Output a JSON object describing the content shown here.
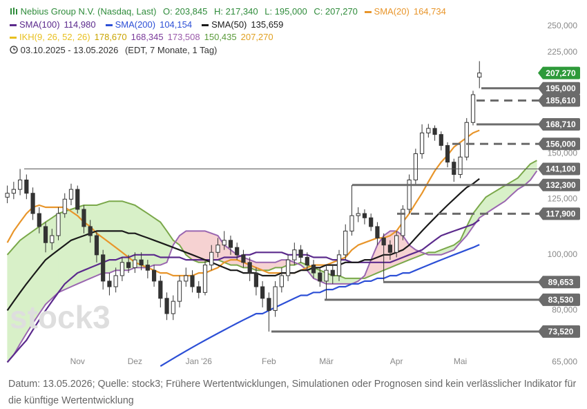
{
  "chart_data": {
    "type": "candlestick",
    "title": "Nebius Group N.V. (Nasdaq, Last)",
    "title_color": "#2e8b3a",
    "ohlc": [
      "O: 203,845",
      "H: 217,340",
      "L: 195,000",
      "C: 207,270"
    ],
    "period": "03.10.2025 - 13.05.2026",
    "period_note": "(EDT, 7 Monate, 1 Tag)",
    "watermark": "stock3",
    "footnote": "Datum: 13.05.2026; Quelle: stock3; Frühere Wertentwicklungen, Simulationen oder Prognosen sind kein verlässlicher Indikator für die künftige Wertentwicklung",
    "log": true,
    "grid": false,
    "ylim": [
      64,
      257
    ],
    "yticks": [
      {
        "value": 65,
        "label": "65,000"
      },
      {
        "value": 80,
        "label": "80,000"
      },
      {
        "value": 100,
        "label": "100,000"
      },
      {
        "value": 125,
        "label": "125,000"
      },
      {
        "value": 150,
        "label": "150,000"
      },
      {
        "value": 225,
        "label": "225,000"
      },
      {
        "value": 250,
        "label": "250,000"
      }
    ],
    "candle_color": "#333333",
    "categories": [
      null,
      null,
      null,
      null,
      null,
      null,
      null,
      null,
      null,
      null,
      null,
      "Nov",
      null,
      null,
      null,
      null,
      null,
      null,
      null,
      null,
      "Dez",
      null,
      null,
      null,
      null,
      null,
      null,
      null,
      null,
      null,
      "Jan '26",
      null,
      null,
      null,
      null,
      null,
      null,
      null,
      null,
      null,
      null,
      "Feb",
      null,
      null,
      null,
      null,
      null,
      null,
      null,
      null,
      "Mär",
      null,
      null,
      null,
      null,
      null,
      null,
      null,
      null,
      null,
      null,
      "Apr",
      null,
      null,
      null,
      null,
      null,
      null,
      null,
      null,
      null,
      "Mai",
      null,
      null,
      null,
      null,
      null,
      null,
      null,
      null,
      null,
      null,
      null,
      null
    ],
    "open": [
      126,
      128,
      130,
      135,
      128,
      118,
      112,
      105,
      108,
      118,
      125,
      130,
      120,
      112,
      108,
      100,
      90,
      88,
      92,
      97,
      95,
      98,
      96,
      94,
      90,
      84,
      79,
      83,
      90,
      92,
      88,
      86,
      96,
      101,
      104,
      106,
      103,
      100,
      97,
      93,
      88,
      84,
      80,
      88,
      92,
      98,
      102,
      99,
      96,
      93,
      90,
      94,
      92,
      100,
      110,
      117,
      118,
      116,
      112,
      107,
      104,
      101,
      108,
      120,
      135,
      150,
      163,
      166,
      162,
      155,
      145,
      138,
      148,
      170,
      203.845,
      null,
      null,
      null,
      null,
      null,
      null,
      null,
      null,
      null
    ],
    "high": [
      132,
      134,
      141.1,
      138,
      131,
      121,
      114,
      111,
      121,
      128,
      133,
      132,
      122,
      115,
      110,
      102,
      93,
      95,
      99,
      100,
      101,
      101,
      98,
      96,
      92,
      86,
      85,
      92,
      95,
      94,
      90,
      98,
      104,
      107,
      110,
      108,
      105,
      102,
      99,
      95,
      90,
      86,
      90,
      95,
      100,
      105,
      104,
      101,
      98,
      95,
      96,
      96,
      102,
      113,
      132.3,
      121,
      120,
      118,
      114,
      109,
      106,
      110,
      122,
      138,
      153,
      168.71,
      169,
      168,
      164,
      157,
      147,
      156,
      173,
      193,
      217.34,
      null,
      null,
      null,
      null,
      null,
      null,
      null,
      null,
      null
    ],
    "low": [
      123,
      125,
      127,
      125,
      115,
      109,
      101,
      102,
      106,
      116,
      122,
      118,
      109,
      105,
      97,
      87,
      85,
      86,
      90,
      93,
      93,
      94,
      91,
      88,
      81,
      77,
      77,
      81,
      88,
      86,
      84,
      85,
      94,
      99,
      102,
      100,
      98,
      95,
      90,
      85,
      81,
      73.52,
      78,
      86,
      90,
      96,
      97,
      94,
      91,
      88,
      83.53,
      89,
      90,
      98,
      108,
      114,
      113,
      110,
      104,
      89.653,
      98,
      99,
      106,
      118,
      132,
      147,
      160,
      158,
      152,
      142,
      134,
      136,
      146,
      168,
      195,
      null,
      null,
      null,
      null,
      null,
      null,
      null,
      null,
      null
    ],
    "close": [
      128,
      130,
      135,
      128,
      118,
      112,
      105,
      108,
      118,
      125,
      130,
      120,
      112,
      108,
      100,
      90,
      88,
      92,
      97,
      95,
      98,
      96,
      94,
      90,
      84,
      79,
      83,
      90,
      92,
      88,
      86,
      96,
      101,
      104,
      106,
      103,
      100,
      97,
      93,
      88,
      84,
      80,
      88,
      92,
      98,
      102,
      99,
      96,
      93,
      90,
      94,
      92,
      100,
      110,
      117,
      118,
      116,
      112,
      107,
      104,
      101,
      108,
      120,
      135,
      150,
      163,
      166,
      162,
      155,
      145,
      138,
      148,
      170,
      190,
      207.27,
      null,
      null,
      null,
      null,
      null,
      null,
      null,
      null,
      null
    ],
    "series": [
      {
        "name": "SMA(20)",
        "legend_value": "164,734",
        "color": "#e8952a",
        "values": [
          105,
          110,
          114,
          118,
          121,
          122,
          121,
          121,
          121,
          121,
          119,
          117,
          114,
          112,
          109,
          107,
          105,
          103,
          101,
          99,
          97,
          96,
          95,
          94,
          93,
          93,
          92,
          92,
          92,
          92,
          93,
          93,
          94,
          95,
          97,
          98,
          98,
          97,
          96,
          95,
          94,
          93,
          93,
          93,
          93,
          93,
          94,
          95,
          96,
          96,
          96,
          97,
          98,
          99,
          102,
          104,
          105,
          106,
          107,
          107,
          108,
          110,
          114,
          118,
          123,
          128,
          134,
          140,
          145,
          149,
          154,
          157,
          160,
          163,
          164.734,
          null,
          null,
          null,
          null,
          null,
          null,
          null,
          null,
          null
        ]
      },
      {
        "name": "SMA(100)",
        "legend_value": "114,980",
        "color": "#5b2a8c",
        "values": [
          65,
          67,
          69,
          71,
          74,
          77,
          80,
          83,
          86,
          89,
          91,
          93,
          94,
          95,
          96,
          97,
          98,
          98,
          99,
          99,
          100,
          100,
          100,
          100,
          99,
          99,
          99,
          99,
          98,
          98,
          98,
          98,
          98,
          98,
          99,
          99,
          99,
          100,
          100,
          101,
          101,
          101,
          101,
          101,
          100,
          100,
          100,
          100,
          99,
          99,
          99,
          98,
          98,
          98,
          97,
          97,
          97,
          97,
          97,
          97,
          97,
          98,
          99,
          100,
          101,
          102,
          104,
          106,
          108,
          109,
          110,
          111,
          112,
          113,
          114.98,
          null,
          null,
          null,
          null,
          null,
          null,
          null,
          null,
          null
        ]
      },
      {
        "name": "SMA(200)",
        "legend_value": "104,154",
        "color": "#2c4fd6",
        "values": [
          null,
          null,
          null,
          null,
          null,
          null,
          null,
          null,
          null,
          null,
          null,
          null,
          null,
          null,
          null,
          null,
          null,
          null,
          null,
          null,
          null,
          null,
          null,
          null,
          64,
          65,
          66,
          67,
          68,
          69,
          70,
          71,
          72,
          73,
          74,
          75,
          76,
          77,
          78,
          79,
          79,
          80,
          81,
          82,
          83,
          84,
          85,
          85,
          86,
          86,
          87,
          87,
          88,
          88,
          89,
          89,
          90,
          90,
          91,
          91,
          92,
          92,
          93,
          93,
          94,
          95,
          96,
          97,
          98,
          99,
          100,
          101,
          102,
          103,
          104.154,
          null,
          null,
          null,
          null,
          null,
          null,
          null,
          null,
          null
        ]
      },
      {
        "name": "SMA(50)",
        "legend_value": "135,659",
        "color": "#1a1a1a",
        "values": [
          80,
          83,
          86,
          89,
          92,
          95,
          98,
          100,
          102,
          104,
          106,
          107,
          108,
          109,
          110,
          110,
          110,
          110,
          110,
          109,
          109,
          108,
          107,
          106,
          105,
          104,
          103,
          102,
          101,
          100,
          99,
          98,
          97,
          96,
          95,
          94,
          94,
          93,
          93,
          93,
          92,
          92,
          92,
          93,
          93,
          93,
          94,
          94,
          95,
          95,
          96,
          96,
          96,
          97,
          97,
          97,
          98,
          98,
          99,
          100,
          100,
          101,
          102,
          104,
          107,
          110,
          113,
          116,
          119,
          122,
          125,
          128,
          131,
          133,
          135.659,
          null,
          null,
          null,
          null,
          null,
          null,
          null,
          null,
          null
        ]
      }
    ],
    "cloud": {
      "name": "IKH(9, 26, 52, 26)",
      "color": "#e8c020",
      "legend_values": [
        {
          "label": "178,670",
          "color": "#c9a400"
        },
        {
          "label": "168,345",
          "color": "#7a3a9a"
        },
        {
          "label": "173,508",
          "color": "#9a5aaa"
        },
        {
          "label": "150,435",
          "color": "#5a9a3a"
        },
        {
          "label": "207,270",
          "color": "#e0a020"
        }
      ],
      "up_fill": "#d8f0c8",
      "down_fill": "#f6d2d2",
      "span_a": {
        "color": "#7aa84a",
        "values": [
          100,
          103,
          106,
          108,
          110,
          112,
          114,
          116,
          118,
          119,
          120,
          121,
          122,
          122,
          122,
          123,
          124,
          124,
          124,
          123,
          122,
          120,
          118,
          116,
          114,
          110,
          106,
          104,
          100,
          98,
          97,
          97,
          98,
          98,
          97,
          96,
          96,
          95,
          95,
          94,
          94,
          94,
          95,
          95,
          96,
          96,
          97,
          96,
          95,
          94,
          93,
          92,
          92,
          91,
          91,
          91,
          91,
          92,
          93,
          94,
          95,
          96,
          97,
          98,
          99,
          100,
          101,
          101,
          102,
          103,
          104,
          106,
          112,
          118,
          122,
          126,
          128,
          130,
          132,
          134,
          136,
          140,
          144,
          146
        ]
      },
      "span_b": {
        "color": "#9a66b0",
        "values": [
          65,
          67,
          70,
          73,
          76,
          79,
          82,
          84,
          86,
          87,
          88,
          89,
          90,
          91,
          92,
          93,
          93,
          94,
          94,
          94,
          95,
          95,
          95,
          96,
          96,
          97,
          104,
          108,
          110,
          110,
          110,
          110,
          109,
          108,
          104,
          102,
          100,
          99,
          98,
          97,
          97,
          97,
          97,
          98,
          98,
          97,
          96,
          94,
          91,
          90,
          89,
          89,
          89,
          89,
          89,
          90,
          92,
          98,
          104,
          108,
          110,
          110,
          108,
          104,
          102,
          101,
          100,
          100,
          100,
          101,
          102,
          105,
          108,
          112,
          116,
          118,
          120,
          122,
          124,
          127,
          130,
          132,
          135,
          140
        ]
      }
    },
    "levels": [
      {
        "value": 207.27,
        "label": "207,270",
        "style": "current",
        "color": "#2e9a3a"
      },
      {
        "value": 195,
        "label": "195,000",
        "style": "solid",
        "color": "#6b6b6b"
      },
      {
        "value": 185.61,
        "label": "185,610",
        "style": "dashed",
        "color": "#6b6b6b"
      },
      {
        "value": 168.71,
        "label": "168,710",
        "style": "solid",
        "color": "#6b6b6b"
      },
      {
        "value": 156,
        "label": "156,000",
        "style": "dashed",
        "color": "#6b6b6b"
      },
      {
        "value": 141.1,
        "label": "141,100",
        "style": "thin",
        "color": "#6b6b6b"
      },
      {
        "value": 132.3,
        "label": "132,300",
        "style": "solid",
        "color": "#6b6b6b"
      },
      {
        "value": 117.9,
        "label": "117,900",
        "style": "dashed",
        "color": "#6b6b6b"
      },
      {
        "value": 89.653,
        "label": "89,653",
        "style": "solid",
        "color": "#6b6b6b"
      },
      {
        "value": 83.53,
        "label": "83,530",
        "style": "solid",
        "color": "#6b6b6b"
      },
      {
        "value": 73.52,
        "label": "73,520",
        "style": "solid",
        "color": "#6b6b6b"
      }
    ]
  }
}
